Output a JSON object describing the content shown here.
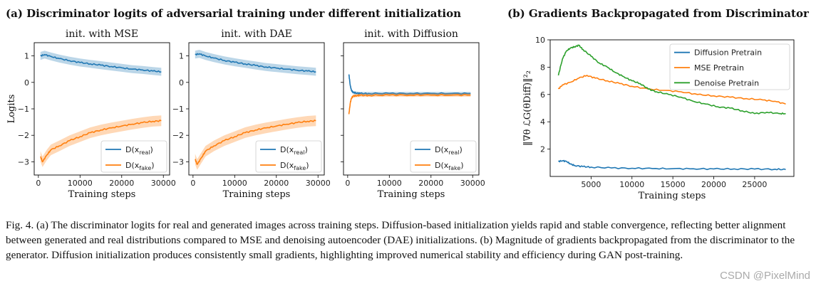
{
  "panel_a_title": "(a) Discriminator logits of adversarial training under different initialization",
  "panel_b_title": "(b) Gradients Backpropagated from Discriminator",
  "caption": "Fig. 4.  (a) The discriminator logits for real and generated images across training steps. Diffusion-based initialization yields rapid and stable convergence, reflecting better alignment between generated and real distributions compared to MSE and denoising autoencoder (DAE) initializations. (b) Magnitude of gradients backpropagated from the discriminator to the generator. Diffusion initialization produces consistently small gradients, highlighting improved numerical stability and efficiency during GAN post-training.",
  "watermark": "CSDN @PixelMind",
  "colors": {
    "blue": "#1f77b4",
    "orange": "#ff7f0e",
    "green": "#2ca02c"
  },
  "chart_data": [
    {
      "type": "line",
      "title": "init. with MSE",
      "xlabel": "Training steps",
      "ylabel": "Logits",
      "xlim": [
        -1000,
        31500
      ],
      "ylim": [
        -3.5,
        1.5
      ],
      "xticks": [
        0,
        10000,
        20000,
        30000
      ],
      "xtick_labels": [
        "0",
        "10000",
        "20000",
        "30000"
      ],
      "yticks": [
        -3,
        -2,
        -1,
        0,
        1
      ],
      "ytick_labels": [
        "−3",
        "−2",
        "−1",
        "0",
        "1"
      ],
      "legend_position": "lower-right",
      "series": [
        {
          "name": "D(x_real)",
          "legend_main": "D(x",
          "legend_sub": "real",
          "legend_end": ")",
          "color": "#1f77b4",
          "x": [
            500,
            1500,
            3000,
            5000,
            7500,
            10000,
            12500,
            15000,
            17500,
            20000,
            22500,
            25000,
            27500,
            29500
          ],
          "y": [
            1.0,
            1.05,
            0.98,
            0.9,
            0.82,
            0.75,
            0.7,
            0.65,
            0.6,
            0.55,
            0.5,
            0.47,
            0.43,
            0.4
          ],
          "band": 0.15
        },
        {
          "name": "D(x_fake)",
          "legend_main": "D(x",
          "legend_sub": "fake",
          "legend_end": ")",
          "color": "#ff7f0e",
          "x": [
            500,
            1000,
            2000,
            3000,
            5000,
            7500,
            10000,
            12500,
            15000,
            17500,
            20000,
            22500,
            25000,
            27500,
            29500
          ],
          "y": [
            -2.8,
            -3.0,
            -2.75,
            -2.55,
            -2.4,
            -2.2,
            -2.05,
            -1.9,
            -1.8,
            -1.72,
            -1.65,
            -1.58,
            -1.52,
            -1.47,
            -1.45
          ],
          "band": 0.2
        }
      ]
    },
    {
      "type": "line",
      "title": "init. with DAE",
      "xlabel": "Training steps",
      "ylabel": "",
      "xlim": [
        -1000,
        31500
      ],
      "ylim": [
        -3.5,
        1.5
      ],
      "xticks": [
        0,
        10000,
        20000,
        30000
      ],
      "xtick_labels": [
        "0",
        "10000",
        "20000",
        "30000"
      ],
      "yticks": [
        -3,
        -2,
        -1,
        0,
        1
      ],
      "ytick_labels": [
        "−3",
        "−2",
        "−1",
        "0",
        "1"
      ],
      "legend_position": "lower-right",
      "series": [
        {
          "name": "D(x_real)",
          "legend_main": "D(x",
          "legend_sub": "real",
          "legend_end": ")",
          "color": "#1f77b4",
          "x": [
            500,
            1500,
            3000,
            5000,
            7500,
            10000,
            12500,
            15000,
            17500,
            20000,
            22500,
            25000,
            27500,
            29500
          ],
          "y": [
            1.05,
            1.08,
            1.0,
            0.92,
            0.83,
            0.76,
            0.7,
            0.64,
            0.58,
            0.54,
            0.5,
            0.46,
            0.43,
            0.4
          ],
          "band": 0.15
        },
        {
          "name": "D(x_fake)",
          "legend_main": "D(x",
          "legend_sub": "fake",
          "legend_end": ")",
          "color": "#ff7f0e",
          "x": [
            500,
            1000,
            2000,
            3000,
            5000,
            7500,
            10000,
            12500,
            15000,
            17500,
            20000,
            22500,
            25000,
            27500,
            29500
          ],
          "y": [
            -2.9,
            -3.1,
            -2.85,
            -2.6,
            -2.4,
            -2.2,
            -2.05,
            -1.9,
            -1.8,
            -1.72,
            -1.65,
            -1.58,
            -1.52,
            -1.47,
            -1.45
          ],
          "band": 0.2
        }
      ]
    },
    {
      "type": "line",
      "title": "init. with Diffusion",
      "xlabel": "Training steps",
      "ylabel": "",
      "xlim": [
        -1000,
        31500
      ],
      "ylim": [
        -3.5,
        1.5
      ],
      "xticks": [
        0,
        10000,
        20000,
        30000
      ],
      "xtick_labels": [
        "0",
        "10000",
        "20000",
        "30000"
      ],
      "yticks": [
        -3,
        -2,
        -1,
        0,
        1
      ],
      "ytick_labels": [
        "",
        "",
        "",
        "",
        ""
      ],
      "legend_position": "lower-right",
      "series": [
        {
          "name": "D(x_real)",
          "legend_main": "D(x",
          "legend_sub": "real",
          "legend_end": ")",
          "color": "#1f77b4",
          "x": [
            300,
            600,
            900,
            1300,
            2000,
            3000,
            5000,
            10000,
            15000,
            20000,
            25000,
            29500
          ],
          "y": [
            0.3,
            -0.1,
            -0.3,
            -0.38,
            -0.4,
            -0.42,
            -0.42,
            -0.42,
            -0.42,
            -0.42,
            -0.42,
            -0.42
          ],
          "band": 0.06
        },
        {
          "name": "D(x_fake)",
          "legend_main": "D(x",
          "legend_sub": "fake",
          "legend_end": ")",
          "color": "#ff7f0e",
          "x": [
            300,
            600,
            900,
            1300,
            2000,
            3000,
            5000,
            10000,
            15000,
            20000,
            25000,
            29500
          ],
          "y": [
            -1.2,
            -0.8,
            -0.6,
            -0.52,
            -0.5,
            -0.49,
            -0.49,
            -0.48,
            -0.48,
            -0.48,
            -0.48,
            -0.48
          ],
          "band": 0.06
        }
      ]
    },
    {
      "type": "line",
      "title": "",
      "xlabel": "Training steps",
      "ylabel": "‖∇θ ℒG(θDiff)‖²₂",
      "xlim": [
        0,
        29800
      ],
      "ylim": [
        0,
        10
      ],
      "xticks": [
        5000,
        10000,
        15000,
        20000,
        25000
      ],
      "xtick_labels": [
        "5000",
        "10000",
        "15000",
        "20000",
        "25000"
      ],
      "yticks": [
        2,
        4,
        6,
        8,
        10
      ],
      "ytick_labels": [
        "2",
        "4",
        "6",
        "8",
        "10"
      ],
      "legend_position": "upper-right",
      "series": [
        {
          "name": "Diffusion Pretrain",
          "color": "#1f77b4",
          "x": [
            1000,
            1500,
            2000,
            2500,
            3000,
            4000,
            5000,
            7500,
            10000,
            12500,
            15000,
            17500,
            20000,
            22500,
            25000,
            27500,
            28800
          ],
          "y": [
            1.1,
            1.15,
            1.1,
            0.9,
            0.8,
            0.72,
            0.68,
            0.62,
            0.6,
            0.58,
            0.57,
            0.56,
            0.55,
            0.55,
            0.54,
            0.53,
            0.5
          ]
        },
        {
          "name": "MSE Pretrain",
          "color": "#ff7f0e",
          "x": [
            1000,
            1500,
            2500,
            3500,
            4500,
            5500,
            7000,
            8500,
            10000,
            12000,
            14000,
            16000,
            18000,
            20000,
            22000,
            24000,
            26000,
            27500,
            28800
          ],
          "y": [
            6.4,
            6.7,
            6.9,
            7.2,
            7.4,
            7.2,
            7.0,
            6.8,
            6.6,
            6.4,
            6.3,
            6.2,
            6.0,
            5.9,
            5.8,
            5.7,
            5.6,
            5.5,
            5.3
          ]
        },
        {
          "name": "Denoise Pretrain",
          "color": "#2ca02c",
          "x": [
            1000,
            1500,
            2000,
            2500,
            3000,
            3500,
            4000,
            5000,
            6000,
            7000,
            8000,
            9000,
            10000,
            11000,
            12000,
            13000,
            14500,
            16000,
            17500,
            19000,
            20500,
            22000,
            23500,
            25000,
            26500,
            28000,
            28800
          ],
          "y": [
            7.4,
            8.6,
            9.2,
            9.4,
            9.5,
            9.6,
            9.3,
            8.8,
            8.3,
            8.0,
            7.6,
            7.3,
            7.0,
            6.8,
            6.4,
            6.2,
            6.0,
            5.8,
            5.5,
            5.3,
            5.1,
            5.0,
            4.8,
            4.6,
            4.7,
            4.6,
            4.6
          ]
        }
      ]
    }
  ]
}
